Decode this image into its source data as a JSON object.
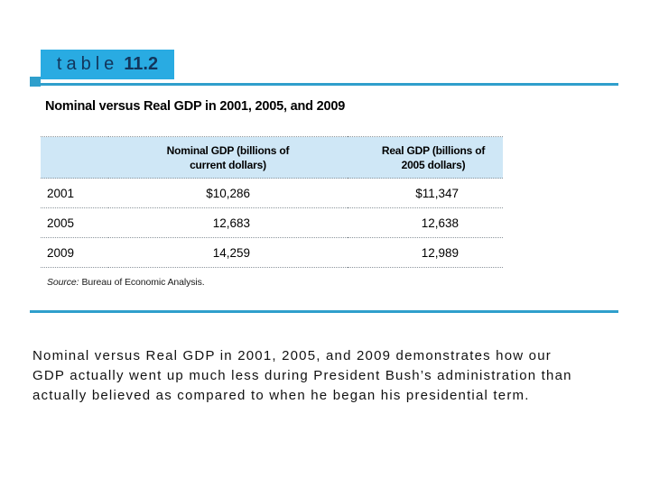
{
  "colors": {
    "accent_cyan": "#29ABE2",
    "rule_cyan": "#2F9FCC",
    "header_band": "#CFE7F6",
    "label_text": "#12355B"
  },
  "figure": {
    "label": {
      "word": "table",
      "number": "11.2"
    },
    "title": "Nominal versus Real GDP in 2001, 2005, and 2009",
    "table": {
      "header": {
        "year_col": "",
        "nominal_line1": "Nominal GDP (billions of",
        "nominal_line2": "current dollars)",
        "real_line1": "Real GDP (billions of",
        "real_line2": "2005 dollars)"
      },
      "rows": [
        {
          "year": "2001",
          "nominal": "$10,286",
          "real": "$11,347"
        },
        {
          "year": "2005",
          "nominal": "12,683",
          "real": "12,638"
        },
        {
          "year": "2009",
          "nominal": "14,259",
          "real": "12,989"
        }
      ],
      "source_label": "Source:",
      "source_text": "Bureau of Economic Analysis."
    }
  },
  "caption": {
    "lines": [
      "Nominal versus Real GDP in 2001, 2005, and 2009 demonstrates how our",
      "GDP actually went up much less during President Bush’s administration than",
      "actually believed as compared to when he began his presidential term."
    ]
  },
  "chart_data": {
    "type": "table",
    "title": "Nominal versus Real GDP in 2001, 2005, and 2009",
    "columns": [
      "",
      "Nominal GDP (billions of current dollars)",
      "Real GDP (billions of 2005 dollars)"
    ],
    "rows": [
      [
        "2001",
        "$10,286",
        "$11,347"
      ],
      [
        "2005",
        "12,683",
        "12,638"
      ],
      [
        "2009",
        "14,259",
        "12,989"
      ]
    ],
    "source": "Source: Bureau of Economic Analysis."
  }
}
